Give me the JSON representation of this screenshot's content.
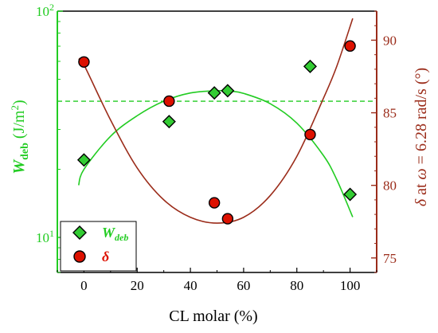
{
  "chart_data": {
    "type": "scatter",
    "x_axis": {
      "label": "CL molar (%)",
      "range": [
        -10,
        110
      ],
      "ticks": [
        0,
        20,
        40,
        60,
        80,
        100
      ],
      "tick_labels": [
        "0",
        "20",
        "40",
        "60",
        "80",
        "100"
      ]
    },
    "y_left": {
      "label_main": "W",
      "label_sub": "deb",
      "label_unit": " (J/m",
      "label_sup": "2",
      "label_close": ")",
      "scale": "log",
      "range": [
        7,
        100
      ],
      "ticks": [
        10,
        100
      ],
      "tick_label_10_base": "10",
      "tick_label_10_exp": "1",
      "tick_label_100_base": "10",
      "tick_label_100_exp": "2",
      "color": "#22cc22"
    },
    "y_right": {
      "label_delta": "δ",
      "label_at": " at ",
      "label_omega": "ω",
      "label_rest": " = 6.28 rad/s (°)",
      "scale": "linear",
      "range": [
        74,
        92
      ],
      "ticks": [
        75,
        80,
        85,
        90
      ],
      "tick_labels": [
        "75",
        "80",
        "85",
        "90"
      ],
      "color": "#9b2c1a"
    },
    "series": [
      {
        "name_main": "W",
        "name_sub": "deb",
        "axis": "left",
        "marker": "diamond",
        "fill": "#33cc33",
        "x": [
          0,
          32,
          49,
          54,
          85,
          100
        ],
        "y": [
          22,
          32.5,
          43.5,
          44.5,
          57,
          15.5
        ]
      },
      {
        "name": "δ",
        "axis": "right",
        "marker": "circle",
        "fill": "#dd1100",
        "x": [
          0,
          32,
          49,
          54,
          85,
          100
        ],
        "y": [
          88.5,
          85.8,
          78.8,
          77.7,
          83.5,
          89.6
        ]
      }
    ],
    "fits": [
      {
        "axis": "left",
        "color": "#22cc22",
        "x": [
          -2,
          0,
          10,
          20,
          30,
          40,
          50,
          55,
          60,
          70,
          80,
          90,
          95,
          101
        ],
        "y": [
          17,
          20,
          28,
          34.5,
          40,
          43.5,
          44.5,
          44.3,
          43.3,
          39,
          32,
          23,
          18,
          12.3
        ]
      },
      {
        "axis": "right",
        "color": "#9b2c1a",
        "x": [
          -2,
          0,
          10,
          20,
          30,
          40,
          50,
          60,
          70,
          80,
          90,
          95,
          101
        ],
        "y": [
          88.7,
          88.3,
          84.5,
          81.2,
          79.0,
          77.8,
          77.4,
          77.8,
          79.3,
          82.0,
          86.0,
          88.2,
          91.5
        ]
      }
    ],
    "reference_line": {
      "axis": "left",
      "y": 40,
      "style": "dashed",
      "color": "#22cc22"
    },
    "legend": {
      "position": "bottom-left"
    }
  }
}
